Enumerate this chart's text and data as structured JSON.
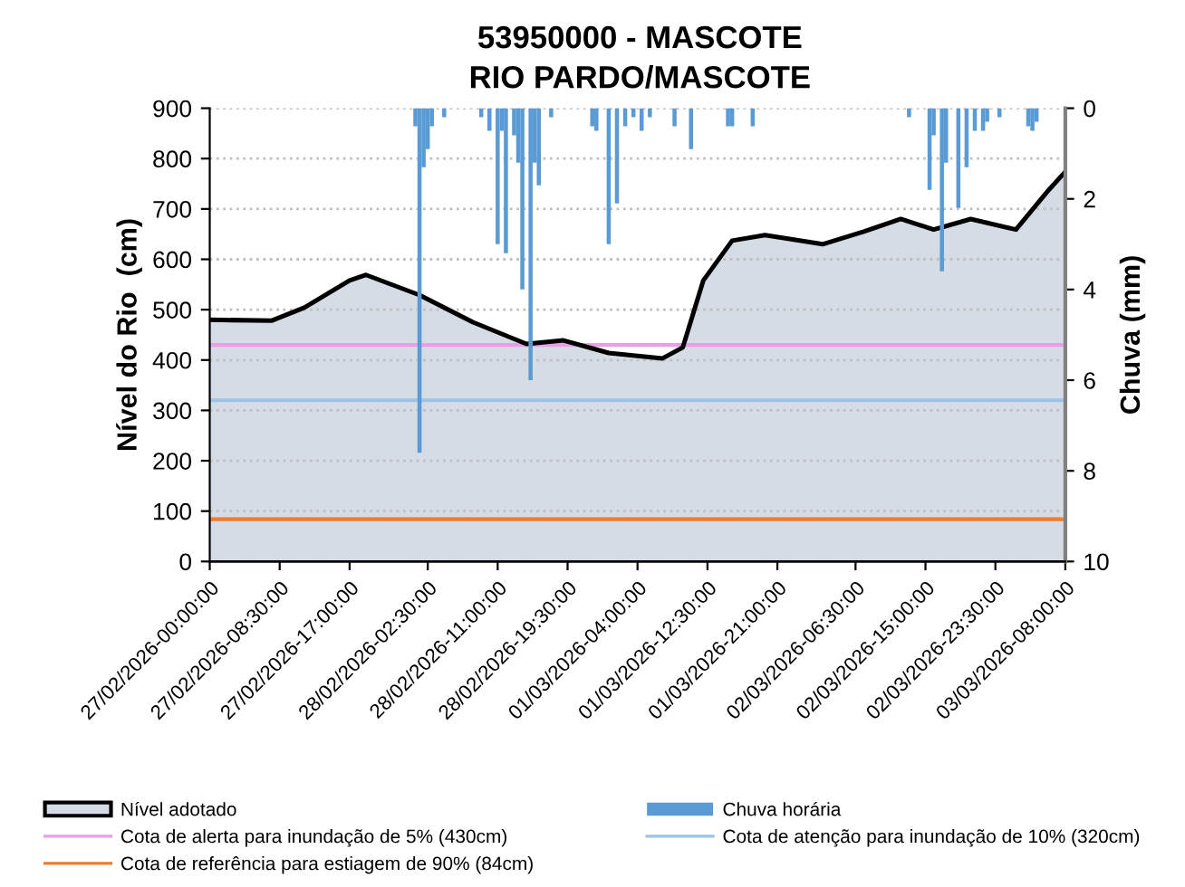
{
  "chart_data": {
    "type": "area",
    "title": "53950000 - MASCOTE",
    "subtitle": "RIO PARDO/MASCOTE",
    "ylabel": "Nível do Rio  (cm)",
    "y2label": "Chuva (mm)",
    "xlim": [
      "2026-02-27T00:00",
      "2026-03-03T08:00"
    ],
    "ylim": [
      0,
      900
    ],
    "yticks": [
      0,
      100,
      200,
      300,
      400,
      500,
      600,
      700,
      800,
      900
    ],
    "y2lim": [
      10,
      0
    ],
    "y2ticks": [
      0,
      2,
      4,
      6,
      8,
      10
    ],
    "xticks": [
      {
        "value": "2026-02-27T00:00",
        "label": "27/02/2026-00:00:00"
      },
      {
        "value": "2026-02-27T08:30",
        "label": "27/02/2026-08:30:00"
      },
      {
        "value": "2026-02-27T17:00",
        "label": "27/02/2026-17:00:00"
      },
      {
        "value": "2026-02-28T02:30",
        "label": "28/02/2026-02:30:00"
      },
      {
        "value": "2026-02-28T11:00",
        "label": "28/02/2026-11:00:00"
      },
      {
        "value": "2026-02-28T19:30",
        "label": "28/02/2026-19:30:00"
      },
      {
        "value": "2026-03-01T04:00",
        "label": "01/03/2026-04:00:00"
      },
      {
        "value": "2026-03-01T12:30",
        "label": "01/03/2026-12:30:00"
      },
      {
        "value": "2026-03-01T21:00",
        "label": "01/03/2026-21:00:00"
      },
      {
        "value": "2026-03-02T06:30",
        "label": "02/03/2026-06:30:00"
      },
      {
        "value": "2026-03-02T15:00",
        "label": "02/03/2026-15:00:00"
      },
      {
        "value": "2026-03-02T23:30",
        "label": "02/03/2026-23:30:00"
      },
      {
        "value": "2026-03-03T08:00",
        "label": "03/03/2026-08:00:00"
      }
    ],
    "grid": "y",
    "legend": "bottom",
    "series": [
      {
        "name": "Nível adotado",
        "color": "#d6dce5",
        "x": [
          "2026-02-27T00:00",
          "2026-02-27T07:30",
          "2026-02-27T11:30",
          "2026-02-27T17:00",
          "2026-02-27T19:00",
          "2026-02-28T01:30",
          "2026-02-28T08:00",
          "2026-02-28T14:30",
          "2026-02-28T19:00",
          "2026-03-01T00:30",
          "2026-03-01T07:00",
          "2026-03-01T09:30",
          "2026-03-01T12:00",
          "2026-03-01T15:30",
          "2026-03-01T19:30",
          "2026-03-02T02:30",
          "2026-03-02T07:30",
          "2026-03-02T12:00",
          "2026-03-02T16:00",
          "2026-03-02T20:30",
          "2026-03-03T02:00",
          "2026-03-03T06:00",
          "2026-03-03T08:00"
        ],
        "values": [
          480,
          478,
          504,
          558,
          569,
          529,
          475,
          432,
          439,
          414,
          403,
          425,
          558,
          637,
          648,
          630,
          655,
          680,
          659,
          680,
          659,
          738,
          774
        ]
      },
      {
        "name": "Chuva horária",
        "type": "bar",
        "axis": "y2",
        "color": "#5b9bd5",
        "x": [
          "2026-02-28T01:00",
          "2026-02-28T01:30",
          "2026-02-28T02:00",
          "2026-02-28T02:30",
          "2026-02-28T03:00",
          "2026-02-28T04:30",
          "2026-02-28T09:00",
          "2026-02-28T10:00",
          "2026-02-28T11:00",
          "2026-02-28T11:30",
          "2026-02-28T12:00",
          "2026-02-28T13:00",
          "2026-02-28T13:30",
          "2026-02-28T14:00",
          "2026-02-28T15:00",
          "2026-02-28T15:30",
          "2026-02-28T16:00",
          "2026-02-28T17:30",
          "2026-02-28T22:30",
          "2026-02-28T23:00",
          "2026-03-01T00:30",
          "2026-03-01T01:30",
          "2026-03-01T02:30",
          "2026-03-01T03:30",
          "2026-03-01T04:30",
          "2026-03-01T05:30",
          "2026-03-01T08:30",
          "2026-03-01T10:30",
          "2026-03-01T15:00",
          "2026-03-01T15:30",
          "2026-03-01T18:00",
          "2026-03-02T13:00",
          "2026-03-02T15:30",
          "2026-03-02T16:00",
          "2026-03-02T17:00",
          "2026-03-02T17:30",
          "2026-03-02T19:00",
          "2026-03-02T20:00",
          "2026-03-02T21:00",
          "2026-03-02T22:00",
          "2026-03-02T22:30",
          "2026-03-03T00:00",
          "2026-03-03T03:30",
          "2026-03-03T04:00",
          "2026-03-03T04:30"
        ],
        "values": [
          0.4,
          7.6,
          1.3,
          0.9,
          0.4,
          0.2,
          0.2,
          0.5,
          3.0,
          0.5,
          3.2,
          0.6,
          1.2,
          4.0,
          6.0,
          1.2,
          1.7,
          0.2,
          0.4,
          0.5,
          3.0,
          2.1,
          0.4,
          0.2,
          0.5,
          0.2,
          0.4,
          0.9,
          0.4,
          0.4,
          0.4,
          0.2,
          1.8,
          0.6,
          3.6,
          1.2,
          2.2,
          1.3,
          0.5,
          0.5,
          0.3,
          0.2,
          0.4,
          0.5,
          0.3
        ]
      }
    ],
    "ref_lines": [
      {
        "axis": "y",
        "value": 430,
        "label": "Cota de alerta para inundação de 5% (430cm)",
        "color": "#e99ee6"
      },
      {
        "axis": "y",
        "value": 320,
        "label": "Cota de atenção para inundação de 10% (320cm)",
        "color": "#9dc3e6"
      },
      {
        "axis": "y",
        "value": 84,
        "label": "Cota de referência para estiagem de 90% (84cm)",
        "color": "#ed7d31"
      }
    ]
  }
}
